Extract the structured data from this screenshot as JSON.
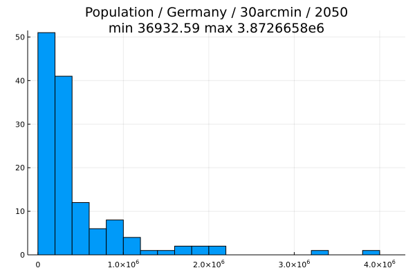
{
  "chart_data": {
    "type": "bar",
    "title_line1": "Population / Germany / 30arcmin / 2050",
    "title_line2": "min 36932.59  max 3.8726658e6",
    "xlabel": "",
    "ylabel": "",
    "xlim": [
      -120000,
      4300000
    ],
    "ylim": [
      0,
      51.5
    ],
    "grid": true,
    "legend": false,
    "bar_color": "#009af9",
    "bins": [
      {
        "x0": 0,
        "x1": 200000,
        "count": 51
      },
      {
        "x0": 200000,
        "x1": 400000,
        "count": 41
      },
      {
        "x0": 400000,
        "x1": 600000,
        "count": 12
      },
      {
        "x0": 600000,
        "x1": 800000,
        "count": 6
      },
      {
        "x0": 800000,
        "x1": 1000000,
        "count": 8
      },
      {
        "x0": 1000000,
        "x1": 1200000,
        "count": 4
      },
      {
        "x0": 1200000,
        "x1": 1400000,
        "count": 1
      },
      {
        "x0": 1400000,
        "x1": 1600000,
        "count": 1
      },
      {
        "x0": 1600000,
        "x1": 1800000,
        "count": 2
      },
      {
        "x0": 1800000,
        "x1": 2000000,
        "count": 2
      },
      {
        "x0": 2000000,
        "x1": 2200000,
        "count": 2
      },
      {
        "x0": 3200000,
        "x1": 3400000,
        "count": 1
      },
      {
        "x0": 3800000,
        "x1": 4000000,
        "count": 1
      }
    ],
    "y_ticks": [
      0,
      10,
      20,
      30,
      40,
      50
    ],
    "x_ticks": [
      {
        "value": 0,
        "label": "0",
        "exp": ""
      },
      {
        "value": 1000000,
        "label": "1.0×10",
        "exp": "6"
      },
      {
        "value": 2000000,
        "label": "2.0×10",
        "exp": "6"
      },
      {
        "value": 3000000,
        "label": "3.0×10",
        "exp": "6"
      },
      {
        "value": 4000000,
        "label": "4.0×10",
        "exp": "6"
      }
    ]
  }
}
